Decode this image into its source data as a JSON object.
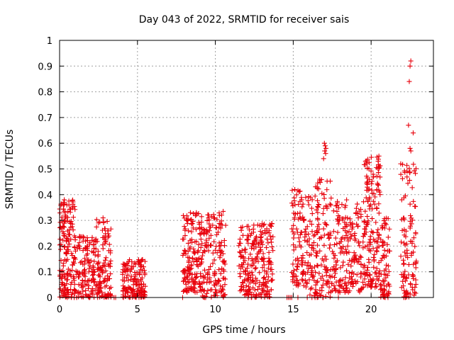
{
  "chart_data": {
    "type": "scatter",
    "title": "Day 043 of 2022, SRMTID for receiver sais",
    "xlabel": "GPS time / hours",
    "ylabel": "SRMTID / TECUs",
    "xlim": [
      0,
      24
    ],
    "ylim": [
      0,
      1
    ],
    "xticks": [
      0,
      5,
      10,
      15,
      20
    ],
    "yticks": [
      0,
      0.1,
      0.2,
      0.3,
      0.4,
      0.5,
      0.6,
      0.7,
      0.8,
      0.9,
      1
    ],
    "xtick_labels": [
      "0",
      "5",
      "10",
      "15",
      "20"
    ],
    "ytick_labels": [
      "0",
      "0.1",
      "0.2",
      "0.3",
      "0.4",
      "0.5",
      "0.6",
      "0.7",
      "0.8",
      "0.9",
      "1"
    ],
    "grid": true,
    "marker": "+",
    "color": "#e8000b",
    "series": [
      {
        "name": "SRMTID",
        "clusters": [
          {
            "x_start": 0.0,
            "x_end": 1.0,
            "y_min": 0.0,
            "y_max": 0.38,
            "n": 170
          },
          {
            "x_start": 1.0,
            "x_end": 2.2,
            "y_min": 0.0,
            "y_max": 0.24,
            "n": 120
          },
          {
            "x_start": 2.2,
            "x_end": 3.3,
            "y_min": 0.0,
            "y_max": 0.31,
            "n": 130
          },
          {
            "x_start": 4.0,
            "x_end": 5.5,
            "y_min": 0.0,
            "y_max": 0.15,
            "n": 150
          },
          {
            "x_start": 7.9,
            "x_end": 9.0,
            "y_min": 0.02,
            "y_max": 0.33,
            "n": 140
          },
          {
            "x_start": 9.0,
            "x_end": 10.7,
            "y_min": 0.0,
            "y_max": 0.33,
            "n": 170
          },
          {
            "x_start": 11.5,
            "x_end": 13.7,
            "y_min": 0.0,
            "y_max": 0.29,
            "n": 240
          },
          {
            "x_start": 14.9,
            "x_end": 16.0,
            "y_min": 0.04,
            "y_max": 0.42,
            "n": 110
          },
          {
            "x_start": 16.0,
            "x_end": 17.5,
            "y_min": 0.0,
            "y_max": 0.46,
            "n": 150
          },
          {
            "x_start": 17.5,
            "x_end": 19.5,
            "y_min": 0.02,
            "y_max": 0.38,
            "n": 190
          },
          {
            "x_start": 19.5,
            "x_end": 20.6,
            "y_min": 0.04,
            "y_max": 0.55,
            "n": 160
          },
          {
            "x_start": 20.6,
            "x_end": 21.2,
            "y_min": 0.0,
            "y_max": 0.31,
            "n": 70
          },
          {
            "x_start": 21.9,
            "x_end": 22.9,
            "y_min": 0.0,
            "y_max": 0.52,
            "n": 110
          }
        ],
        "peaks": [
          {
            "x": 17.0,
            "y": 0.6
          },
          {
            "x": 17.05,
            "y": 0.59
          },
          {
            "x": 17.1,
            "y": 0.58
          },
          {
            "x": 17.02,
            "y": 0.57
          },
          {
            "x": 17.08,
            "y": 0.56
          },
          {
            "x": 16.95,
            "y": 0.54
          },
          {
            "x": 22.55,
            "y": 0.92
          },
          {
            "x": 22.5,
            "y": 0.9
          },
          {
            "x": 22.45,
            "y": 0.84
          },
          {
            "x": 22.4,
            "y": 0.67
          },
          {
            "x": 22.7,
            "y": 0.64
          },
          {
            "x": 22.5,
            "y": 0.58
          },
          {
            "x": 22.55,
            "y": 0.57
          },
          {
            "x": 20.5,
            "y": 0.55
          },
          {
            "x": 20.45,
            "y": 0.53
          },
          {
            "x": 20.5,
            "y": 0.51
          },
          {
            "x": 21.9,
            "y": 0.52
          },
          {
            "x": 0.3,
            "y": 0.38
          },
          {
            "x": 0.6,
            "y": 0.36
          },
          {
            "x": 10.5,
            "y": 0.335
          },
          {
            "x": 8.4,
            "y": 0.33
          },
          {
            "x": 15.1,
            "y": 0.42
          },
          {
            "x": 16.7,
            "y": 0.46
          }
        ],
        "zero_points": [
          1.9,
          3.5,
          3.6,
          4.1,
          7.9,
          9.3,
          14.6,
          14.7,
          14.8,
          14.9,
          15.3,
          15.9,
          16.2,
          16.4,
          16.9,
          17.9,
          20.9,
          22.1,
          22.2
        ]
      }
    ]
  }
}
